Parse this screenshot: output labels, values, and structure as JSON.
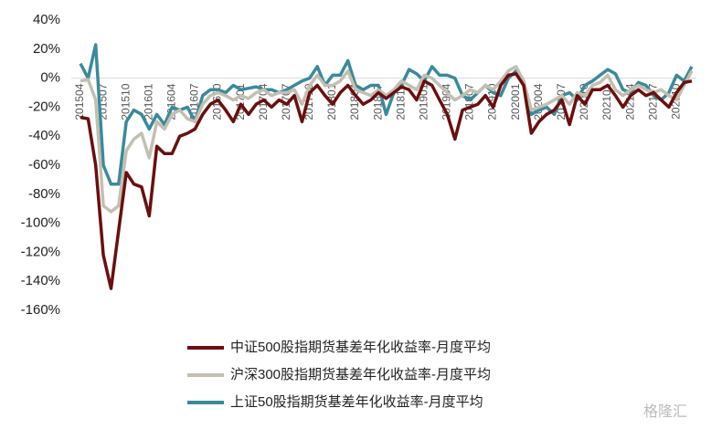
{
  "chart_data": {
    "type": "line",
    "categories": [
      "201504",
      null,
      null,
      "201507",
      null,
      null,
      "201510",
      null,
      null,
      "201601",
      null,
      null,
      "201604",
      null,
      null,
      "201607",
      null,
      null,
      "201610",
      null,
      null,
      "201701",
      null,
      null,
      "201704",
      null,
      null,
      "201707",
      null,
      null,
      "201710",
      null,
      null,
      "201801",
      null,
      null,
      "201804",
      null,
      null,
      "201807",
      null,
      null,
      "201810",
      null,
      null,
      "201901",
      null,
      null,
      "201904",
      null,
      null,
      "201907",
      null,
      null,
      "201910",
      null,
      null,
      "202001",
      null,
      null,
      "202004",
      null,
      null,
      "202007",
      null,
      null,
      "202010",
      null,
      null,
      "202101",
      null,
      null,
      "202104",
      null,
      null,
      "202107",
      null,
      null,
      "202110",
      null,
      null
    ],
    "series": [
      {
        "name": "中证500股指期货基差年化收益率-月度平均",
        "color": "#6b0f0f",
        "values": [
          -27,
          -28,
          -60,
          -122,
          -145,
          -105,
          -65,
          -73,
          -75,
          -95,
          -47,
          -52,
          -52,
          -40,
          -38,
          -35,
          -25,
          -18,
          -15,
          -22,
          -30,
          -18,
          -25,
          -18,
          -15,
          -20,
          -15,
          -18,
          -12,
          -30,
          -10,
          -5,
          -12,
          -18,
          -10,
          -5,
          -12,
          -18,
          -15,
          -10,
          -14,
          -10,
          -6,
          -8,
          -15,
          -2,
          -5,
          -15,
          -25,
          -42,
          -22,
          -20,
          -18,
          -12,
          -20,
          -5,
          2,
          3,
          -5,
          -38,
          -30,
          -25,
          -22,
          -15,
          -32,
          -12,
          -18,
          -8,
          -8,
          -5,
          -12,
          -20,
          -12,
          -8,
          -12,
          -10,
          -15,
          -20,
          -10,
          -3,
          -2
        ]
      },
      {
        "name": "沪深300股指期货基差年化收益率-月度平均",
        "color": "#c3bfb1",
        "values": [
          -2,
          -1,
          -15,
          -88,
          -92,
          -88,
          -50,
          -42,
          -38,
          -55,
          -30,
          -35,
          -25,
          -22,
          -28,
          -30,
          -18,
          -12,
          -10,
          -12,
          -15,
          -12,
          -14,
          -10,
          -8,
          -12,
          -10,
          -10,
          -8,
          -18,
          -5,
          2,
          -5,
          -5,
          -2,
          5,
          -8,
          -10,
          -12,
          -8,
          -12,
          -8,
          -2,
          -5,
          -8,
          2,
          0,
          -5,
          -10,
          -15,
          -12,
          -8,
          -10,
          -5,
          -8,
          -2,
          5,
          8,
          -2,
          -22,
          -20,
          -18,
          -15,
          -12,
          -18,
          -10,
          -12,
          -5,
          -3,
          2,
          -8,
          -12,
          -8,
          -5,
          -8,
          -10,
          -8,
          -12,
          -15,
          -5,
          5
        ]
      },
      {
        "name": "上证50股指期货基差年化收益率-月度平均",
        "color": "#3a8a9c",
        "values": [
          10,
          0,
          23,
          -60,
          -73,
          -73,
          -30,
          -22,
          -25,
          -35,
          -25,
          -32,
          -20,
          -22,
          -20,
          -30,
          -12,
          -8,
          -8,
          -10,
          -5,
          -8,
          -7,
          -6,
          -8,
          -8,
          -10,
          -8,
          -5,
          -2,
          0,
          8,
          -5,
          2,
          2,
          12,
          -5,
          -8,
          -5,
          -5,
          -25,
          -10,
          -5,
          6,
          3,
          -2,
          8,
          2,
          2,
          0,
          -12,
          -15,
          -10,
          -5,
          -10,
          -12,
          0,
          5,
          -2,
          -25,
          -22,
          -20,
          -25,
          -12,
          -10,
          -15,
          -5,
          -2,
          2,
          6,
          3,
          -8,
          -10,
          -3,
          -5,
          -12,
          -15,
          -10,
          2,
          -2,
          8
        ]
      }
    ],
    "ylim": [
      -160,
      40
    ],
    "yticks": [
      {
        "value": -160,
        "label": "-160%"
      },
      {
        "value": -140,
        "label": "-140%"
      },
      {
        "value": -120,
        "label": "-120%"
      },
      {
        "value": -100,
        "label": "-100%"
      },
      {
        "value": -80,
        "label": "-80%"
      },
      {
        "value": -60,
        "label": "-60%"
      },
      {
        "value": -40,
        "label": "-40%"
      },
      {
        "value": -20,
        "label": "-20%"
      },
      {
        "value": 0,
        "label": "0%"
      },
      {
        "value": 20,
        "label": "20%"
      },
      {
        "value": 40,
        "label": "40%"
      }
    ],
    "grid": false,
    "watermark": "格隆汇"
  }
}
